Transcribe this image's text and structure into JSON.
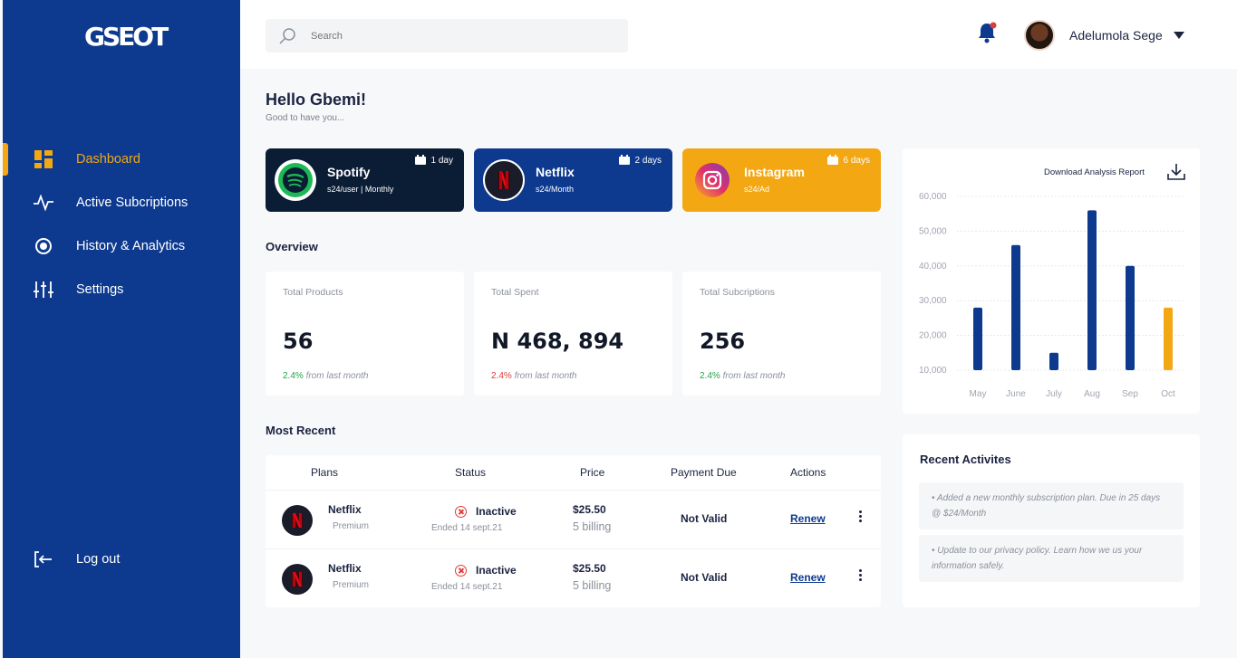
{
  "brand": {
    "logo_text": "GSEOT"
  },
  "sidebar": {
    "items": [
      {
        "label": "Dashboard",
        "icon": "dashboard-grid-icon"
      },
      {
        "label": "Active Subcriptions",
        "icon": "pulse-icon"
      },
      {
        "label": "History & Analytics",
        "icon": "target-icon"
      },
      {
        "label": "Settings",
        "icon": "sliders-icon"
      }
    ],
    "logout": {
      "label": "Log out",
      "icon": "logout-icon"
    }
  },
  "topbar": {
    "search_placeholder": "Search",
    "user_name": "Adelumola Sege"
  },
  "greeting": {
    "title": "Hello Gbemi!",
    "subtitle": "Good to have you..."
  },
  "subscriptions": [
    {
      "name": "Spotify",
      "price": "s24/user | Monthly",
      "days": "1 day",
      "color": "#0b1c35"
    },
    {
      "name": "Netflix",
      "price": "s24/Month",
      "days": "2 days",
      "color": "#0d3a8f"
    },
    {
      "name": "Instagram",
      "price": "s24/Ad",
      "days": "6 days",
      "color": "#f3a712"
    }
  ],
  "overview": {
    "title": "Overview",
    "cards": [
      {
        "label": "Total Products",
        "value": "56",
        "pct": "2.4%",
        "trend_text": "from last month",
        "trend_color": "#22a447"
      },
      {
        "label": "Total Spent",
        "value": "N 468, 894",
        "pct": "2.4%",
        "trend_text": "from last month",
        "trend_color": "#e03b3b"
      },
      {
        "label": "Total Subcriptions",
        "value": "256",
        "pct": "2.4%",
        "trend_text": "from last month",
        "trend_color": "#22a447"
      }
    ]
  },
  "recent": {
    "title": "Most Recent",
    "headers": [
      "Plans",
      "Status",
      "Price",
      "Payment Due",
      "Actions"
    ],
    "rows": [
      {
        "name": "Netflix",
        "plan": "Premium",
        "status": "Inactive",
        "ended": "Ended 14 sept.21",
        "price": "$25.50",
        "billing": "5 billing",
        "due": "Not Valid",
        "action": "Renew"
      },
      {
        "name": "Netflix",
        "plan": "Premium",
        "status": "Inactive",
        "ended": "Ended 14 sept.21",
        "price": "$25.50",
        "billing": "5 billing",
        "due": "Not Valid",
        "action": "Renew"
      }
    ]
  },
  "analysis": {
    "download_label": "Download Analysis Report"
  },
  "chart_data": {
    "type": "bar",
    "categories": [
      "May",
      "June",
      "July",
      "Aug",
      "Sep",
      "Oct"
    ],
    "values": [
      28000,
      46000,
      15000,
      56000,
      40000,
      28000
    ],
    "colors": [
      "#0d3a8f",
      "#0d3a8f",
      "#0d3a8f",
      "#0d3a8f",
      "#0d3a8f",
      "#f3a712"
    ],
    "yticks": [
      "60,000",
      "50,000",
      "40,000",
      "30,000",
      "20,000",
      "10,000"
    ],
    "ylim": [
      10000,
      60000
    ],
    "grid": true
  },
  "activities": {
    "title": "Recent Activites",
    "items": [
      "Added a new monthly subscription plan. Due in 25 days @ $24/Month",
      "Update to our privacy policy. Learn how we us your information safely."
    ]
  }
}
